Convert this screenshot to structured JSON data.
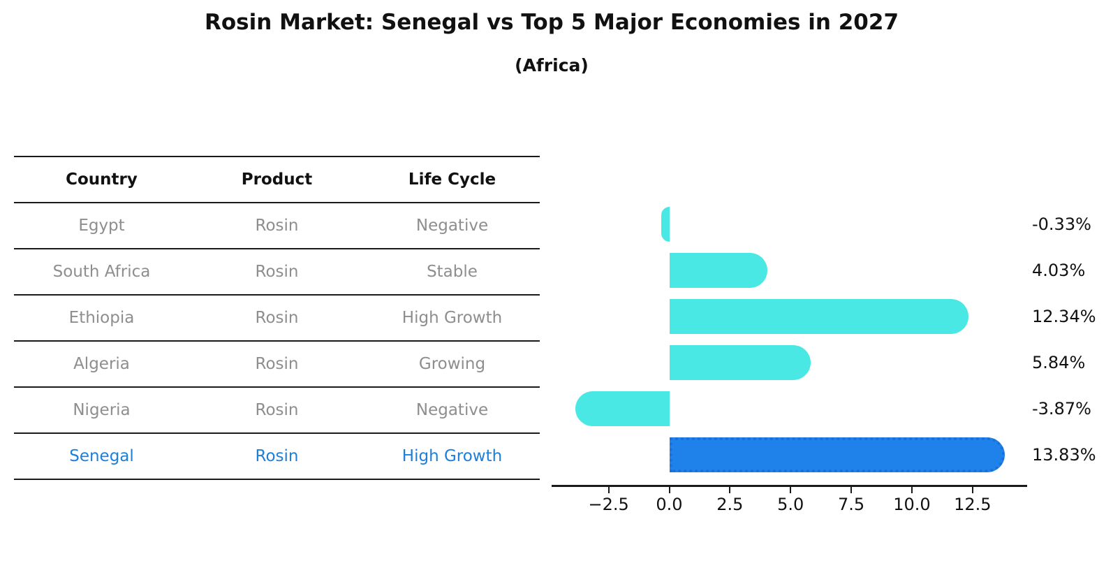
{
  "title": "Rosin Market: Senegal vs Top 5 Major Economies in 2027",
  "subtitle": "(Africa)",
  "table": {
    "headers": [
      "Country",
      "Product",
      "Life Cycle"
    ],
    "rows": [
      {
        "country": "Egypt",
        "product": "Rosin",
        "life_cycle": "Negative",
        "highlight": false
      },
      {
        "country": "South Africa",
        "product": "Rosin",
        "life_cycle": "Stable",
        "highlight": false
      },
      {
        "country": "Ethiopia",
        "product": "Rosin",
        "life_cycle": "High Growth",
        "highlight": false
      },
      {
        "country": "Algeria",
        "product": "Rosin",
        "life_cycle": "Growing",
        "highlight": false
      },
      {
        "country": "Nigeria",
        "product": "Rosin",
        "life_cycle": "Negative",
        "highlight": false
      },
      {
        "country": "Senegal",
        "product": "Rosin",
        "life_cycle": "High Growth",
        "highlight": true
      }
    ]
  },
  "chart_data": {
    "type": "bar",
    "orientation": "horizontal",
    "title": "Rosin Market: Senegal vs Top 5 Major Economies in 2027",
    "subtitle": "(Africa)",
    "categories": [
      "Egypt",
      "South Africa",
      "Ethiopia",
      "Algeria",
      "Nigeria",
      "Senegal"
    ],
    "values": [
      -0.33,
      4.03,
      12.34,
      5.84,
      -3.87,
      13.83
    ],
    "value_labels": [
      "-0.33%",
      "4.03%",
      "12.34%",
      "5.84%",
      "-3.87%",
      "13.83%"
    ],
    "x_ticks": [
      -2.5,
      0.0,
      2.5,
      5.0,
      7.5,
      10.0,
      12.5
    ],
    "x_tick_labels": [
      "−2.5",
      "0.0",
      "2.5",
      "5.0",
      "7.5",
      "10.0",
      "12.5"
    ],
    "xlim": [
      -4.85,
      14.75
    ],
    "xlabel": "",
    "ylabel": "",
    "grid": false,
    "legend": false,
    "bar_color": "#4AE8E4",
    "highlight_index": 5,
    "highlight_color": "#1E82EA",
    "highlight_edge_color": "#1B6FD8"
  },
  "colors": {
    "text": "#111111",
    "muted_text": "#8e8e8e",
    "highlight_text": "#1E7FDB",
    "line": "#1a1a1a",
    "background": "#ffffff"
  }
}
